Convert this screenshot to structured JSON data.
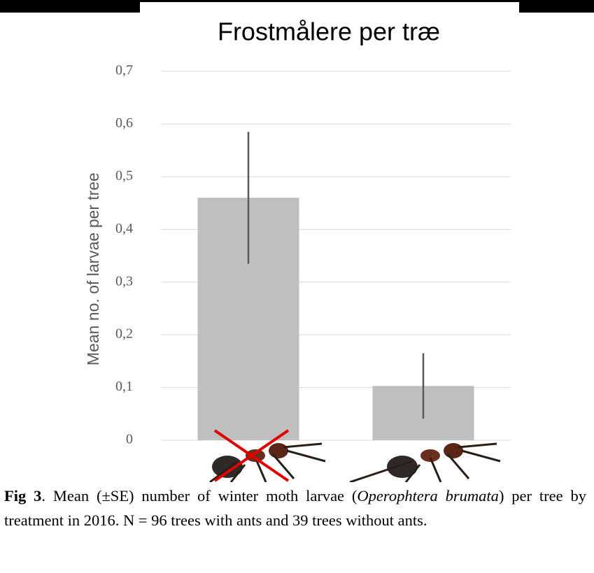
{
  "chart_data": {
    "type": "bar",
    "title": "Frostmålere per træ",
    "y_label": "Mean no. of larvae per tree",
    "categories": [
      null,
      null
    ],
    "values": [
      0.46,
      0.103
    ],
    "errors": [
      0.125,
      0.062
    ],
    "color": "#bfbfbf",
    "error_color": "#595959",
    "ylim": [
      0,
      0.7
    ],
    "yticks": [
      0,
      {
        "value": 0.1,
        "label": "0,1"
      },
      {
        "value": 0.2,
        "label": "0,2"
      },
      {
        "value": 0.3,
        "label": "0,3"
      },
      {
        "value": 0.4,
        "label": "0,4"
      },
      {
        "value": 0.5,
        "label": "0,5"
      },
      {
        "value": 0.6,
        "label": "0,6"
      },
      {
        "value": 0.7,
        "label": "0,7"
      }
    ],
    "grid": true
  },
  "caption": {
    "label": "Fig 3",
    "text_1": ". Mean (±SE) number of winter moth larvae (",
    "species": "Operophtera brumata",
    "text_2": ") per tree by treatment in 2016. N = 96 trees with ants and 39 trees without ants."
  }
}
